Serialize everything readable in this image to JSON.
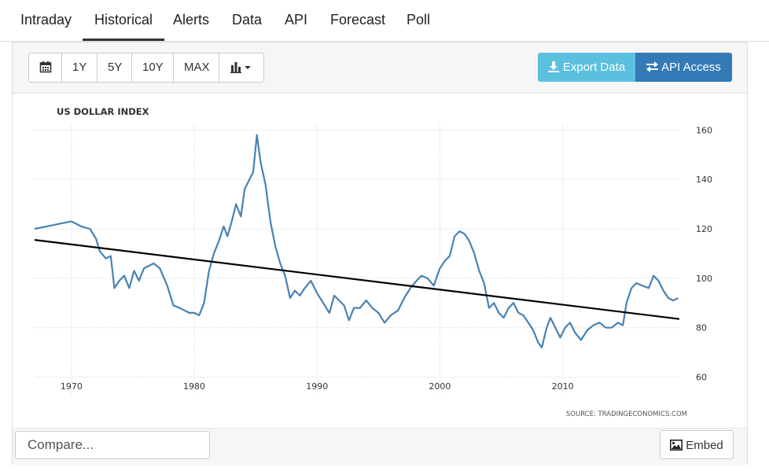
{
  "tabs": [
    {
      "label": "Intraday"
    },
    {
      "label": "Historical"
    },
    {
      "label": "Alerts"
    },
    {
      "label": "Data"
    },
    {
      "label": "API"
    },
    {
      "label": "Forecast"
    },
    {
      "label": "Poll"
    }
  ],
  "active_tab": "Historical",
  "toolbar": {
    "calendar_icon": "calendar-icon",
    "ranges": [
      "1Y",
      "5Y",
      "10Y",
      "MAX"
    ],
    "chart_type_icon": "bar-chart-icon",
    "export_label": "Export Data",
    "export_icon": "download-icon",
    "api_label": "API Access",
    "api_icon": "exchange-icon"
  },
  "footer": {
    "compare_placeholder": "Compare...",
    "embed_label": "Embed",
    "embed_icon": "image-icon"
  },
  "colors": {
    "series": "#4682b4",
    "trend": "#000000",
    "export_button": "#5bc0de",
    "api_button": "#337ab7"
  },
  "chart_data": {
    "type": "line",
    "title": "US DOLLAR INDEX",
    "source": "SOURCE: TRADINGECONOMICS.COM",
    "xlabel": "",
    "ylabel": "",
    "xlim": [
      1967,
      2019.5
    ],
    "ylim": [
      57,
      162
    ],
    "x_ticks": [
      1970,
      1980,
      1990,
      2000,
      2010
    ],
    "y_ticks": [
      60,
      80,
      100,
      120,
      140,
      160
    ],
    "y_axis_position": "right",
    "grid": "dotted",
    "series": [
      {
        "x": [
          1967.0,
          1968.0,
          1969.0,
          1970.0,
          1970.8,
          1971.5,
          1972.0,
          1972.3,
          1972.8,
          1973.2,
          1973.5,
          1973.9,
          1974.3,
          1974.7,
          1975.1,
          1975.5,
          1975.9,
          1976.3,
          1976.7,
          1977.2,
          1977.8,
          1978.3,
          1978.8,
          1979.2,
          1979.6,
          1980.0,
          1980.4,
          1980.8,
          1981.2,
          1981.6,
          1982.0,
          1982.4,
          1982.7,
          1983.0,
          1983.4,
          1983.8,
          1984.1,
          1984.5,
          1984.8,
          1985.1,
          1985.4,
          1985.8,
          1986.2,
          1986.6,
          1987.0,
          1987.4,
          1987.8,
          1988.2,
          1988.6,
          1989.0,
          1989.5,
          1990.0,
          1990.5,
          1991.0,
          1991.4,
          1991.8,
          1992.2,
          1992.6,
          1993.0,
          1993.5,
          1994.0,
          1994.5,
          1995.0,
          1995.5,
          1996.0,
          1996.6,
          1997.1,
          1997.6,
          1998.1,
          1998.5,
          1999.0,
          1999.5,
          2000.0,
          2000.4,
          2000.8,
          2001.2,
          2001.6,
          2002.0,
          2002.4,
          2002.8,
          2003.2,
          2003.6,
          2004.0,
          2004.4,
          2004.8,
          2005.2,
          2005.6,
          2006.0,
          2006.4,
          2006.8,
          2007.2,
          2007.6,
          2008.0,
          2008.3,
          2008.7,
          2009.0,
          2009.4,
          2009.8,
          2010.2,
          2010.6,
          2011.0,
          2011.5,
          2012.0,
          2012.5,
          2013.0,
          2013.5,
          2014.0,
          2014.5,
          2014.9,
          2015.2,
          2015.6,
          2016.0,
          2016.5,
          2017.0,
          2017.4,
          2017.8,
          2018.2,
          2018.6,
          2019.0,
          2019.4
        ],
        "values": [
          120,
          121,
          122,
          123,
          121,
          120,
          116,
          111,
          108,
          109,
          96,
          99,
          101,
          96,
          103,
          99,
          104,
          105,
          106,
          104,
          97,
          89,
          88,
          87,
          86,
          86,
          85,
          90,
          103,
          110,
          115,
          121,
          117,
          122,
          130,
          125,
          136,
          140,
          143,
          158,
          147,
          138,
          123,
          113,
          106,
          101,
          92,
          95,
          93,
          96,
          99,
          94,
          90,
          86,
          93,
          91,
          89,
          83,
          88,
          88,
          91,
          88,
          86,
          82,
          85,
          87,
          92,
          96,
          99,
          101,
          100,
          97,
          104,
          107,
          109,
          117,
          119,
          118,
          115,
          110,
          103,
          98,
          88,
          90,
          86,
          84,
          88,
          90,
          86,
          85,
          82,
          79,
          74,
          72,
          80,
          84,
          80,
          76,
          80,
          82,
          78,
          75,
          79,
          81,
          82,
          80,
          80,
          82,
          81,
          90,
          96,
          98,
          97,
          96,
          101,
          99,
          95,
          92,
          91,
          92
        ]
      },
      {
        "name": "",
        "x": [
          1967.0,
          2019.5
        ],
        "values": [
          115.5,
          83.5
        ]
      }
    ]
  }
}
